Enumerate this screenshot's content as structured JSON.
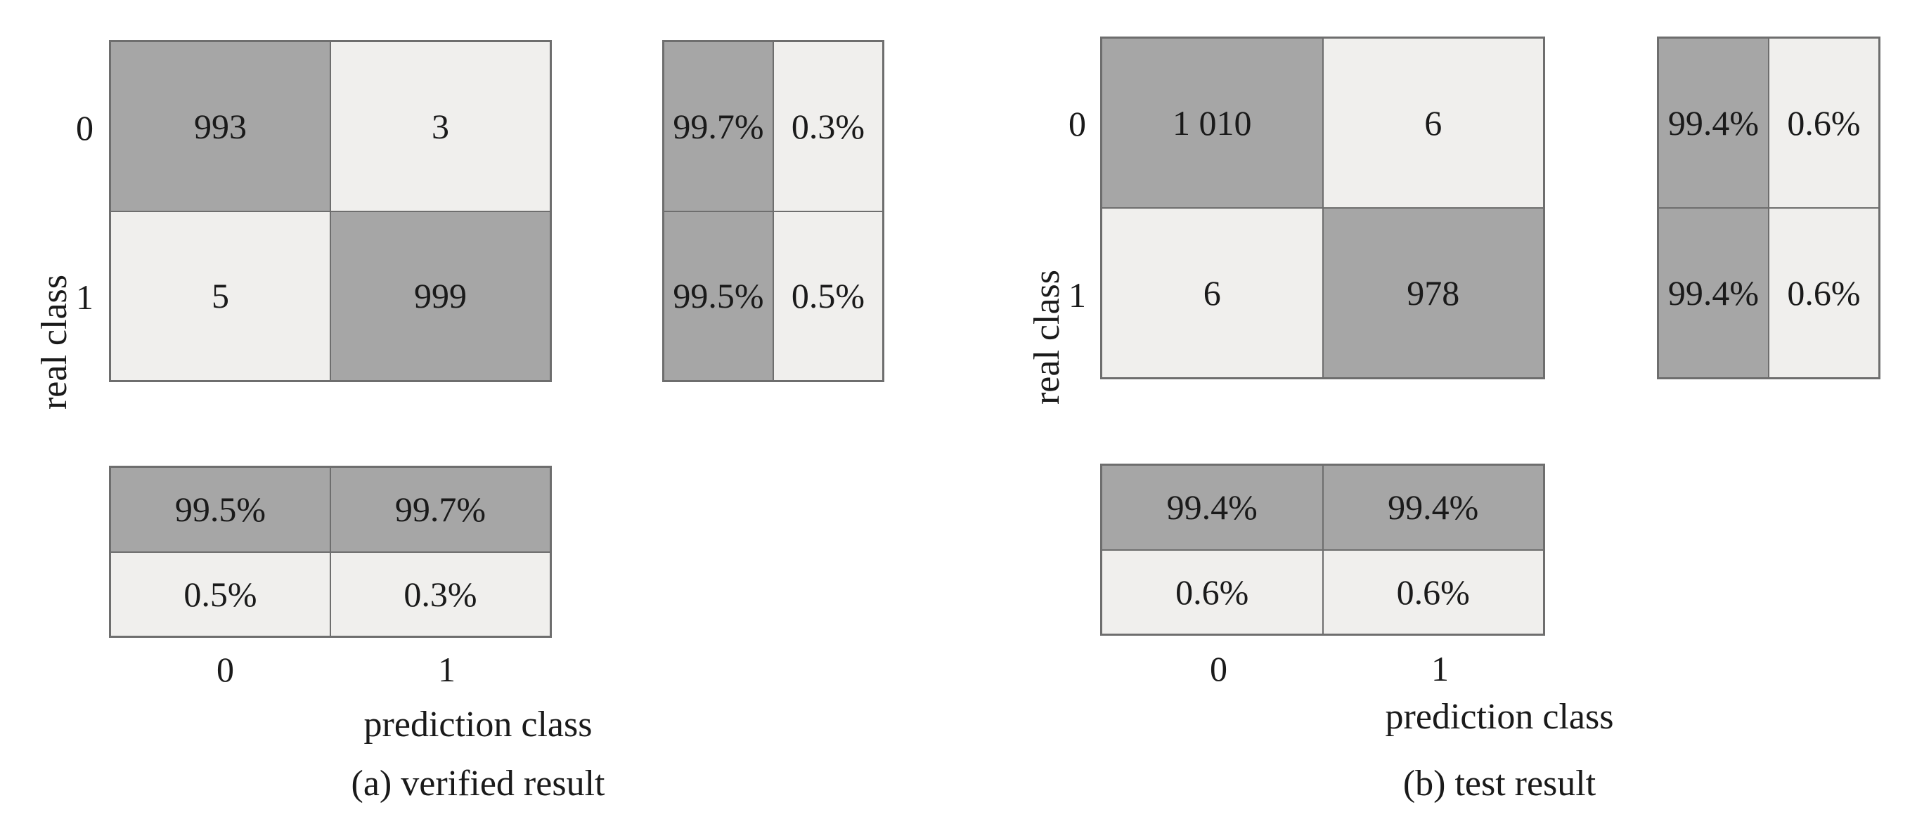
{
  "chart_data": [
    {
      "type": "heatmap",
      "caption": "(a) verified result",
      "xlabel": "prediction class",
      "ylabel": "real class",
      "classes": [
        "0",
        "1"
      ],
      "matrix": [
        [
          "993",
          "3"
        ],
        [
          "5",
          "999"
        ]
      ],
      "row_percent": [
        [
          "99.7%",
          "0.3%"
        ],
        [
          "99.5%",
          "0.5%"
        ]
      ],
      "col_percent": [
        [
          "99.5%",
          "99.7%"
        ],
        [
          "0.5%",
          "0.3%"
        ]
      ]
    },
    {
      "type": "heatmap",
      "caption": "(b) test result",
      "xlabel": "prediction class",
      "ylabel": "real class",
      "classes": [
        "0",
        "1"
      ],
      "matrix": [
        [
          "1 010",
          "6"
        ],
        [
          "6",
          "978"
        ]
      ],
      "row_percent": [
        [
          "99.4%",
          "0.6%"
        ],
        [
          "99.4%",
          "0.6%"
        ]
      ],
      "col_percent": [
        [
          "99.4%",
          "99.4%"
        ],
        [
          "0.6%",
          "0.6%"
        ]
      ]
    }
  ],
  "colors": {
    "dark": "#a6a6a6",
    "light": "#f0efed",
    "border": "#6e6e6e"
  }
}
